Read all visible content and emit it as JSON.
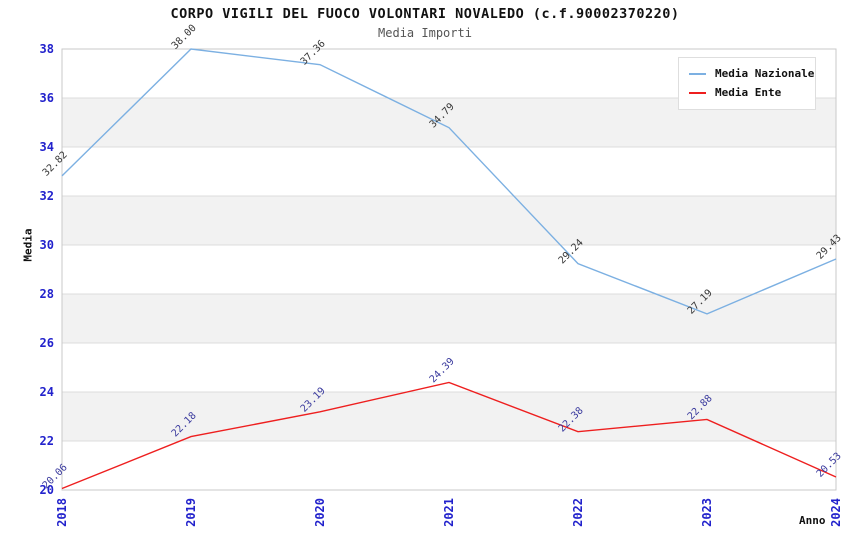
{
  "chart_data": {
    "type": "line",
    "title": "CORPO VIGILI DEL FUOCO VOLONTARI NOVALEDO (c.f.90002370220)",
    "subtitle": "Media Importi",
    "xlabel": "Anno",
    "ylabel": "Media",
    "x": [
      "2018",
      "2019",
      "2020",
      "2021",
      "2022",
      "2023",
      "2024"
    ],
    "series": [
      {
        "name": "Media Nazionale",
        "color": "#7cb0e2",
        "label_color": "#383838",
        "values": [
          32.82,
          38.0,
          37.36,
          34.79,
          29.24,
          27.19,
          29.43
        ]
      },
      {
        "name": "Media Ente",
        "color": "#ee1f1f",
        "label_color": "#3b3b9e",
        "values": [
          20.06,
          22.18,
          23.19,
          24.39,
          22.38,
          22.88,
          20.53
        ]
      }
    ],
    "ylim": [
      20,
      38
    ],
    "ytick_step": 2,
    "yticks": [
      20,
      22,
      24,
      26,
      28,
      30,
      32,
      34,
      36,
      38
    ],
    "grid": true,
    "legend_position": "top-right",
    "colors": {
      "axis_text": "#2222cc",
      "band_fill": "#f2f2f2",
      "grid_line": "#dcdcdc",
      "plot_border": "#c9c9c9",
      "background": "#ffffff"
    }
  }
}
